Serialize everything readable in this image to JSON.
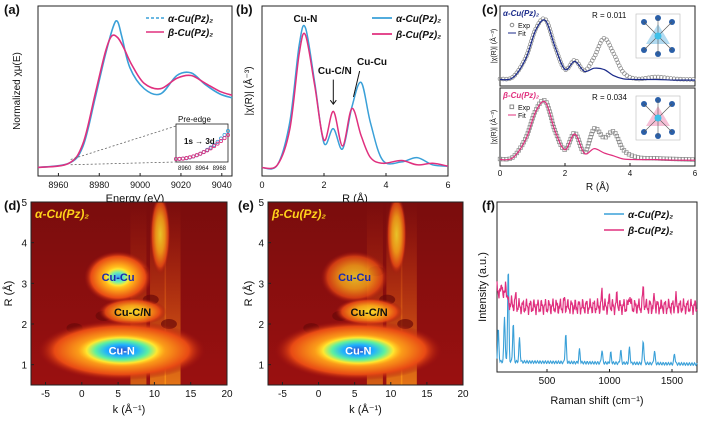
{
  "colors": {
    "alpha": "#3aa0d8",
    "beta": "#e0307e",
    "frame": "#222222"
  },
  "panel_labels": [
    "(a)",
    "(b)",
    "(c)",
    "(d)",
    "(e)",
    "(f)"
  ],
  "chart_data": [
    {
      "panel": "a",
      "type": "line",
      "xlabel": "Energy (eV)",
      "ylabel": "Normalized χμ(E)",
      "xlim": [
        8950,
        9045
      ],
      "xticks": [
        8960,
        8980,
        9000,
        9020,
        9040
      ],
      "legend": [
        "α-Cu(Pz)₂",
        "β-Cu(Pz)₂"
      ],
      "series": [
        {
          "name": "α-Cu(Pz)₂",
          "style": "dashed",
          "x": [
            8950,
            8965,
            8972,
            8978,
            8983,
            8987,
            8989,
            8991,
            8995,
            9002,
            9010,
            9018,
            9025,
            9032,
            9039,
            9045
          ],
          "y": [
            0.02,
            0.05,
            0.18,
            0.55,
            0.88,
            1.1,
            1.13,
            1.02,
            0.78,
            0.62,
            0.58,
            0.72,
            0.74,
            0.65,
            0.58,
            0.55
          ]
        },
        {
          "name": "β-Cu(Pz)₂",
          "style": "solid",
          "x": [
            8950,
            8965,
            8972,
            8978,
            8983,
            8986,
            8989,
            8992,
            8996,
            9002,
            9010,
            9018,
            9025,
            9032,
            9039,
            9045
          ],
          "y": [
            0.02,
            0.05,
            0.2,
            0.58,
            0.9,
            1.02,
            1.01,
            0.93,
            0.8,
            0.66,
            0.62,
            0.7,
            0.72,
            0.66,
            0.6,
            0.57
          ]
        }
      ],
      "inset": {
        "title": "Pre-edge",
        "annotation": "1s → 3d",
        "xticks": [
          8960,
          8964,
          8968
        ],
        "xlim": [
          8958,
          8970
        ]
      }
    },
    {
      "panel": "b",
      "type": "line",
      "xlabel": "R (Å)",
      "ylabel": "|χ(R)| (Å⁻³)",
      "xlim": [
        0,
        6
      ],
      "xticks": [
        0,
        2,
        4,
        6
      ],
      "legend": [
        "α-Cu(Pz)₂",
        "β-Cu(Pz)₂"
      ],
      "annotations": [
        "Cu-N",
        "Cu-C/N",
        "Cu-Cu"
      ],
      "series": [
        {
          "name": "α-Cu(Pz)₂",
          "x": [
            0,
            0.5,
            0.9,
            1.2,
            1.4,
            1.7,
            2.0,
            2.3,
            2.6,
            2.9,
            3.2,
            3.5,
            3.9,
            4.5,
            5.0,
            5.5,
            6.0
          ],
          "y": [
            0.03,
            0.05,
            0.35,
            0.88,
            1.0,
            0.62,
            0.2,
            0.3,
            0.16,
            0.45,
            0.62,
            0.34,
            0.08,
            0.07,
            0.1,
            0.05,
            0.04
          ]
        },
        {
          "name": "β-Cu(Pz)₂",
          "x": [
            0,
            0.5,
            0.9,
            1.2,
            1.4,
            1.7,
            2.0,
            2.3,
            2.6,
            2.9,
            3.2,
            3.5,
            3.9,
            4.5,
            5.0,
            5.5,
            6.0
          ],
          "y": [
            0.03,
            0.05,
            0.3,
            0.82,
            0.95,
            0.6,
            0.22,
            0.42,
            0.18,
            0.44,
            0.25,
            0.1,
            0.06,
            0.08,
            0.05,
            0.06,
            0.04
          ]
        }
      ]
    },
    {
      "panel": "c",
      "type": "scatter",
      "xlabel": "R (Å)",
      "xlim": [
        0,
        6
      ],
      "xticks": [
        0,
        2,
        4,
        6
      ],
      "subplots": [
        {
          "label": "α-Cu(Pz)₂",
          "R": "R = 0.011",
          "ylabel": "|χ(R)| (Å⁻³)",
          "legend": [
            "Exp",
            "Fit"
          ],
          "series": [
            {
              "name": "Exp",
              "x": [
                0,
                0.4,
                0.8,
                1.1,
                1.4,
                1.7,
                2.0,
                2.3,
                2.6,
                2.9,
                3.2,
                3.5,
                3.8,
                4.2,
                4.8,
                5.4,
                6.0
              ],
              "y": [
                0.05,
                0.08,
                0.4,
                0.85,
                1.0,
                0.55,
                0.2,
                0.35,
                0.18,
                0.4,
                0.7,
                0.45,
                0.15,
                0.05,
                0.08,
                0.05,
                0.04
              ]
            },
            {
              "name": "Fit",
              "x": [
                0,
                0.4,
                0.8,
                1.1,
                1.4,
                1.7,
                2.0,
                2.3,
                2.6,
                2.9,
                3.2,
                3.5,
                3.8,
                4.2,
                4.8,
                5.4,
                6.0
              ],
              "y": [
                0.04,
                0.07,
                0.38,
                0.83,
                0.98,
                0.55,
                0.2,
                0.33,
                0.17,
                0.22,
                0.2,
                0.1,
                0.05,
                0.04,
                0.04,
                0.03,
                0.03
              ]
            }
          ]
        },
        {
          "label": "β-Cu(Pz)₂",
          "R": "R = 0.034",
          "ylabel": "|χ(R)| (Å⁻³)",
          "legend": [
            "Exp",
            "Fit"
          ],
          "series": [
            {
              "name": "Exp",
              "x": [
                0,
                0.4,
                0.8,
                1.1,
                1.4,
                1.7,
                2.0,
                2.3,
                2.6,
                2.9,
                3.2,
                3.5,
                3.8,
                4.2,
                4.8,
                5.4,
                6.0
              ],
              "y": [
                0.05,
                0.08,
                0.4,
                0.85,
                1.0,
                0.5,
                0.2,
                0.48,
                0.15,
                0.55,
                0.4,
                0.5,
                0.2,
                0.08,
                0.06,
                0.05,
                0.04
              ]
            },
            {
              "name": "Fit",
              "x": [
                0,
                0.4,
                0.8,
                1.1,
                1.4,
                1.7,
                2.0,
                2.3,
                2.6,
                2.9,
                3.2,
                3.5,
                3.8,
                4.2,
                4.8,
                5.4,
                6.0
              ],
              "y": [
                0.04,
                0.07,
                0.38,
                0.83,
                0.98,
                0.5,
                0.2,
                0.46,
                0.14,
                0.22,
                0.15,
                0.1,
                0.05,
                0.04,
                0.04,
                0.03,
                0.03
              ]
            }
          ]
        }
      ]
    },
    {
      "panel": "d",
      "type": "heatmap",
      "title": "α-Cu(Pz)₂",
      "xlabel": "k (Å⁻¹)",
      "ylabel": "R (Å)",
      "xlim": [
        -7,
        20
      ],
      "ylim": [
        0.5,
        5
      ],
      "xticks": [
        -5,
        0,
        5,
        10,
        15,
        20
      ],
      "yticks": [
        1,
        2,
        3,
        4,
        5
      ],
      "annotations": [
        "Cu-Cu",
        "Cu-C/N",
        "Cu-N"
      ],
      "peaks": [
        {
          "k": 5.5,
          "R": 1.35,
          "amp": 1.0
        },
        {
          "k": 5.0,
          "R": 3.15,
          "amp": 0.72
        },
        {
          "k": 7.0,
          "R": 2.3,
          "amp": 0.55
        }
      ]
    },
    {
      "panel": "e",
      "type": "heatmap",
      "title": "β-Cu(Pz)₂",
      "xlabel": "k (Å⁻¹)",
      "ylabel": "R (Å)",
      "xlim": [
        -7,
        20
      ],
      "ylim": [
        0.5,
        5
      ],
      "xticks": [
        -5,
        0,
        5,
        10,
        15,
        20
      ],
      "yticks": [
        1,
        2,
        3,
        4,
        5
      ],
      "annotations": [
        "Cu-Cu",
        "Cu-C/N",
        "Cu-N"
      ],
      "peaks": [
        {
          "k": 5.5,
          "R": 1.35,
          "amp": 1.0
        },
        {
          "k": 5.0,
          "R": 3.15,
          "amp": 0.45
        },
        {
          "k": 7.0,
          "R": 2.3,
          "amp": 0.6
        }
      ]
    },
    {
      "panel": "f",
      "type": "line",
      "xlabel": "Raman shift (cm⁻¹)",
      "ylabel": "Intensity (a.u.)",
      "xlim": [
        100,
        1700
      ],
      "xticks": [
        500,
        1000,
        1500
      ],
      "legend": [
        "α-Cu(Pz)₂",
        "β-Cu(Pz)₂"
      ],
      "series": [
        {
          "name": "α-Cu(Pz)₂",
          "baseline": 0.08,
          "peaks": [
            [
              110,
              0.25
            ],
            [
              160,
              0.35
            ],
            [
              190,
              0.72
            ],
            [
              230,
              0.3
            ],
            [
              280,
              0.18
            ],
            [
              650,
              0.22
            ],
            [
              760,
              0.1
            ],
            [
              940,
              0.1
            ],
            [
              1010,
              0.08
            ],
            [
              1090,
              0.1
            ],
            [
              1160,
              0.12
            ],
            [
              1270,
              0.18
            ],
            [
              1360,
              0.1
            ],
            [
              1520,
              0.08
            ]
          ]
        },
        {
          "name": "β-Cu(Pz)₂",
          "baseline": 0.5,
          "peaks": [
            [
              140,
              0.12
            ],
            [
              170,
              0.16
            ],
            [
              250,
              0.06
            ],
            [
              640,
              0.05
            ],
            [
              940,
              0.1
            ],
            [
              1000,
              0.06
            ],
            [
              1060,
              0.08
            ],
            [
              1160,
              0.1
            ],
            [
              1270,
              0.14
            ],
            [
              1360,
              0.07
            ],
            [
              1530,
              0.06
            ]
          ]
        }
      ]
    }
  ]
}
